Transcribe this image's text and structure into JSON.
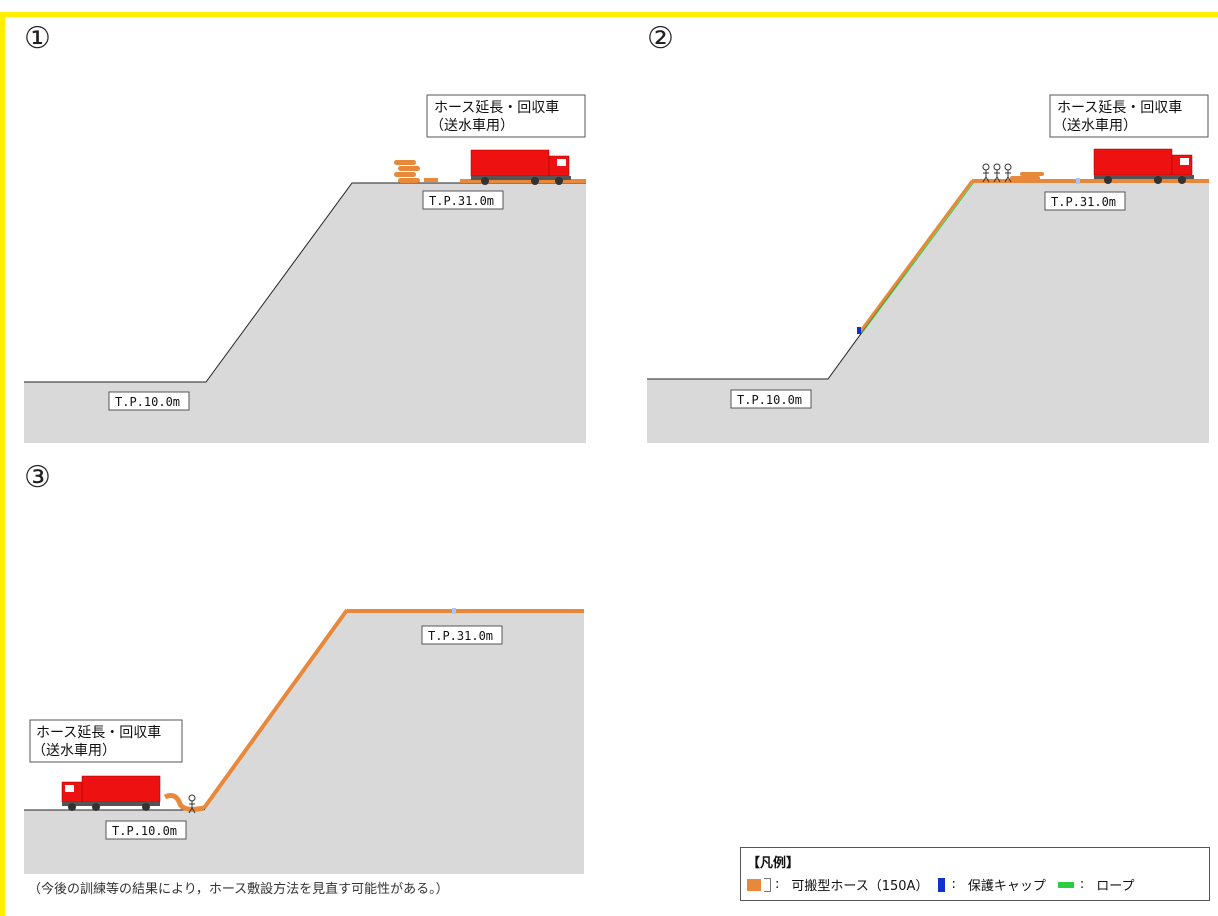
{
  "panels": [
    {
      "number": "①",
      "vehicle_label_line1": "ホース延長・回収車",
      "vehicle_label_line2": "（送水車用）",
      "upper_level": "T.P.31.0m",
      "lower_level": "T.P.10.0m"
    },
    {
      "number": "②",
      "vehicle_label_line1": "ホース延長・回収車",
      "vehicle_label_line2": "（送水車用）",
      "upper_level": "T.P.31.0m",
      "lower_level": "T.P.10.0m"
    },
    {
      "number": "③",
      "vehicle_label_line1": "ホース延長・回収車",
      "vehicle_label_line2": "（送水車用）",
      "upper_level": "T.P.31.0m",
      "lower_level": "T.P.10.0m"
    }
  ],
  "note": "（今後の訓練等の結果により，ホース敷設方法を見直す可能性がある。）",
  "legend": {
    "title": "【凡例】",
    "hose": "可搬型ホース（150A）",
    "cap": "保護キャップ",
    "rope": "ロープ",
    "colon": ":"
  },
  "colors": {
    "frame": "#ffee00",
    "ground": "#d9d9d9",
    "hose": "#e8883a",
    "truck": "#ee1111",
    "cap": "#1030d0",
    "rope": "#2ecc40"
  },
  "icons": [
    "truck-icon",
    "hose-coil-icon",
    "worker-icon"
  ]
}
